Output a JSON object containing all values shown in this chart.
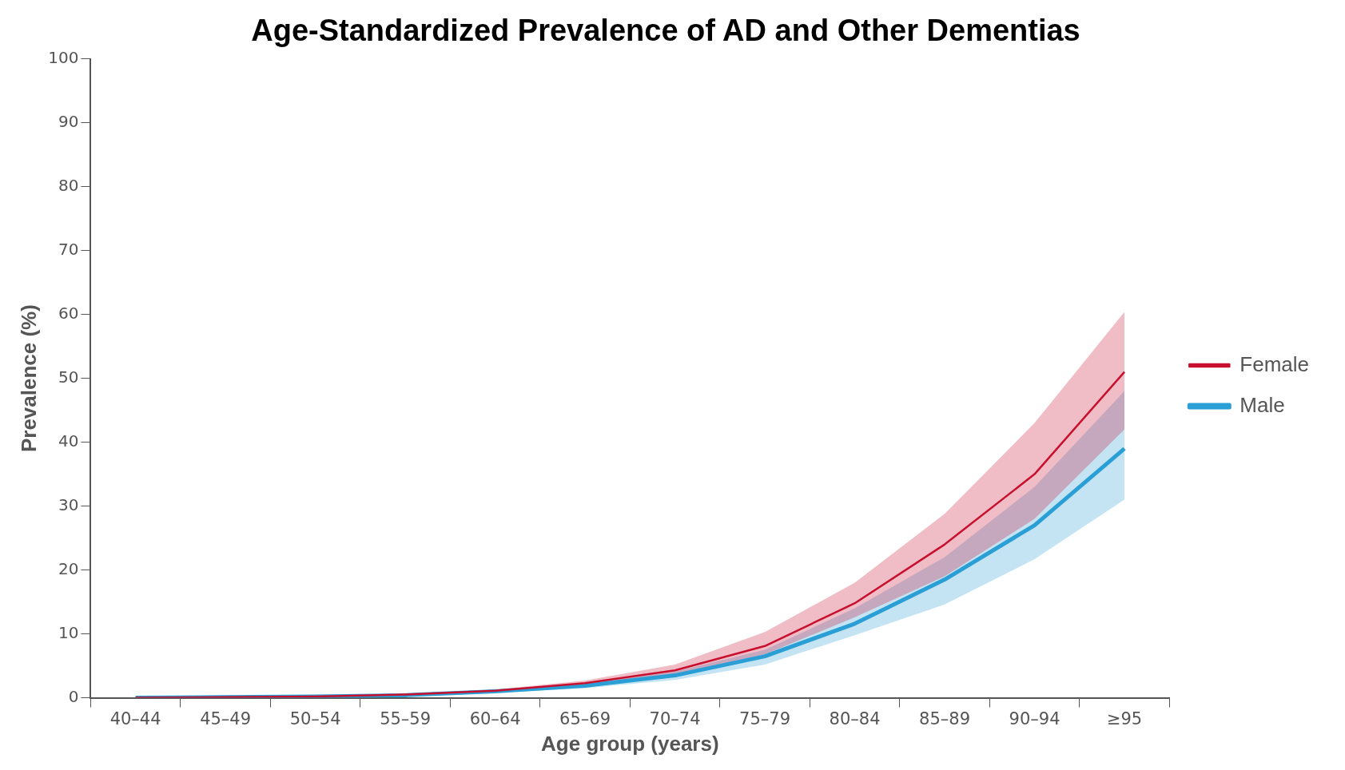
{
  "chart_data": {
    "type": "line",
    "title": "Age-Standardized Prevalence of AD and Other Dementias",
    "xlabel": "Age group (years)",
    "ylabel": "Prevalence (%)",
    "categories": [
      "40–44",
      "45–49",
      "50–54",
      "55–59",
      "60–64",
      "65–69",
      "70–74",
      "75–79",
      "80–84",
      "85–89",
      "90–94",
      "≥95"
    ],
    "series": [
      {
        "name": "Female",
        "color": "#c8102e",
        "values": [
          0,
          0.1,
          0.2,
          0.5,
          1.1,
          2.3,
          4.3,
          8.1,
          14.8,
          24,
          35,
          51
        ],
        "lower": [
          0,
          0.1,
          0.1,
          0.4,
          0.9,
          1.9,
          3.6,
          6.8,
          12.6,
          19,
          28,
          42
        ],
        "upper": [
          0,
          0.1,
          0.3,
          0.6,
          1.3,
          2.7,
          5.2,
          10.3,
          18,
          28.8,
          43,
          60.4
        ]
      },
      {
        "name": "Male",
        "color": "#2a9fd6",
        "values": [
          0,
          0.1,
          0.2,
          0.4,
          1,
          1.9,
          3.5,
          6.5,
          11.6,
          18.5,
          27,
          39
        ],
        "lower": [
          0,
          0,
          0.1,
          0.3,
          0.8,
          1.5,
          2.8,
          5.2,
          9.8,
          14.6,
          21.7,
          31
        ],
        "upper": [
          0,
          0.1,
          0.2,
          0.5,
          1.2,
          2.2,
          4.1,
          7.5,
          14,
          22,
          33,
          48
        ]
      }
    ],
    "ylim": [
      0,
      100
    ],
    "yticks": [
      0,
      10,
      20,
      30,
      40,
      50,
      60,
      70,
      80,
      90,
      100
    ],
    "grid": false,
    "legend": "right",
    "marker": "none",
    "line_style": "solid"
  }
}
